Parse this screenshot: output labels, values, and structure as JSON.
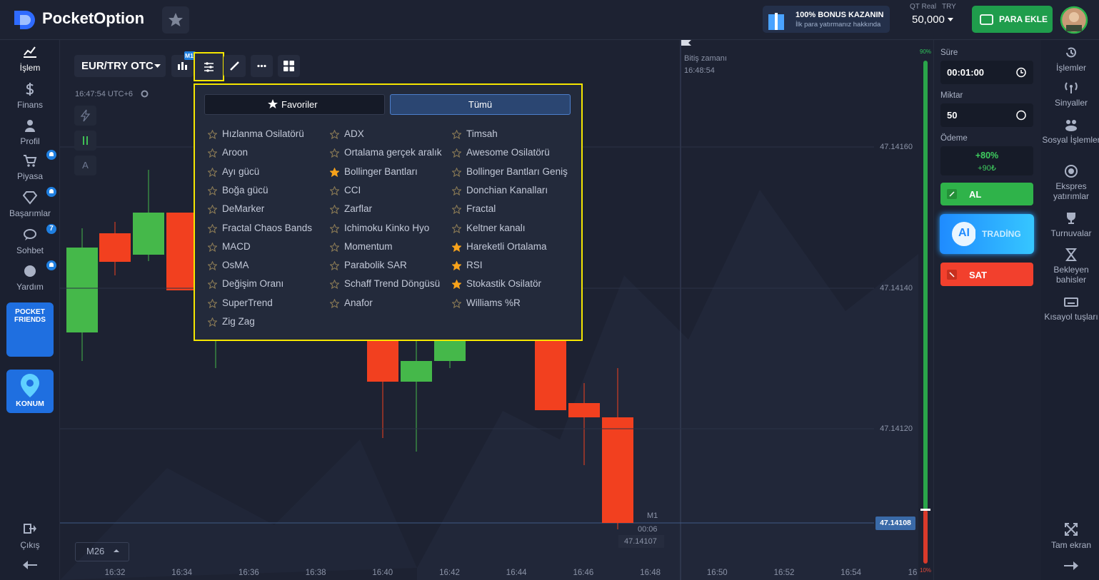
{
  "header": {
    "logo": "PocketOption",
    "bonus_title": "100% BONUS KAZANIN",
    "bonus_subtitle": "İlk para yatırmanız hakkında",
    "account": "QT Real",
    "currency": "TRY",
    "balance": "50,000",
    "deposit": "PARA EKLE"
  },
  "left_nav": {
    "items": [
      "İşlem",
      "Finans",
      "Profil",
      "Piyasa",
      "Başarımlar",
      "Sohbet",
      "Yardım"
    ],
    "chat_badge": "7",
    "promo_friends": "POCKET FRIENDS",
    "promo_location": "KONUM",
    "logout": "Çıkış"
  },
  "toolbar": {
    "asset": "EUR/TRY OTC",
    "timeframe_badge": "M1",
    "clock": "16:47:54 UTC+6",
    "drawing_letter": "A"
  },
  "indicators": {
    "tabs": [
      "Favoriler",
      "Tümü"
    ],
    "columns": [
      [
        {
          "name": "Hızlanma Osilatörü",
          "favorite": false
        },
        {
          "name": "Aroon",
          "favorite": false
        },
        {
          "name": "Ayı gücü",
          "favorite": false
        },
        {
          "name": "Boğa gücü",
          "favorite": false
        },
        {
          "name": "DeMarker",
          "favorite": false
        },
        {
          "name": "Fractal Chaos Bands",
          "favorite": false
        },
        {
          "name": "MACD",
          "favorite": false
        },
        {
          "name": "OsMA",
          "favorite": false
        },
        {
          "name": "Değişim Oranı",
          "favorite": false
        },
        {
          "name": "SuperTrend",
          "favorite": false
        },
        {
          "name": "Zig Zag",
          "favorite": false
        }
      ],
      [
        {
          "name": "ADX",
          "favorite": false
        },
        {
          "name": "Ortalama gerçek aralık",
          "favorite": false
        },
        {
          "name": "Bollinger Bantları",
          "favorite": true
        },
        {
          "name": "CCI",
          "favorite": false
        },
        {
          "name": "Zarflar",
          "favorite": false
        },
        {
          "name": "Ichimoku Kinko Hyo",
          "favorite": false
        },
        {
          "name": "Momentum",
          "favorite": false
        },
        {
          "name": "Parabolik SAR",
          "favorite": false
        },
        {
          "name": "Schaff Trend Döngüsü",
          "favorite": false
        },
        {
          "name": "Anafor",
          "favorite": false
        }
      ],
      [
        {
          "name": "Timsah",
          "favorite": false
        },
        {
          "name": "Awesome Osilatörü",
          "favorite": false
        },
        {
          "name": "Bollinger Bantları Geniş",
          "favorite": false
        },
        {
          "name": "Donchian Kanalları",
          "favorite": false
        },
        {
          "name": "Fractal",
          "favorite": false
        },
        {
          "name": "Keltner kanalı",
          "favorite": false
        },
        {
          "name": "Hareketli Ortalama",
          "favorite": true
        },
        {
          "name": "RSI",
          "favorite": true
        },
        {
          "name": "Stokastik Osilatör",
          "favorite": true
        },
        {
          "name": "Williams %R",
          "favorite": false
        }
      ]
    ]
  },
  "chart": {
    "price_labels": [
      "47.14160",
      "47.14140",
      "47.14120"
    ],
    "current_price": "47.14108",
    "time_labels": [
      "16:32",
      "16:34",
      "16:36",
      "16:38",
      "16:40",
      "16:42",
      "16:44",
      "16:46",
      "16:48",
      "16:50",
      "16:52",
      "16:54",
      "16"
    ],
    "expiry_label": "Bitiş zamanı",
    "expiry_time": "16:48:54",
    "candle_timeframe": "M1",
    "candle_countdown": "00:06",
    "candle_price": "47.14107",
    "zoom": "M26",
    "up_share": "90%",
    "down_share": "10%"
  },
  "trade_panel": {
    "duration_label": "Süre",
    "duration": "00:01:00",
    "amount_label": "Miktar",
    "amount": "50",
    "payout_label": "Ödeme",
    "payout_percent": "+80%",
    "payout_amount": "+90₺",
    "buy": "AL",
    "ai_badge": "AI",
    "ai_text": "TRADİNG",
    "sell": "SAT"
  },
  "right_nav": {
    "items": [
      "İşlemler",
      "Sinyaller",
      "Sosyal İşlemler",
      "Ekspres yatırımlar",
      "Turnuvalar",
      "Bekleyen bahisler",
      "Kısayol tuşları"
    ],
    "fullscreen": "Tam ekran"
  }
}
